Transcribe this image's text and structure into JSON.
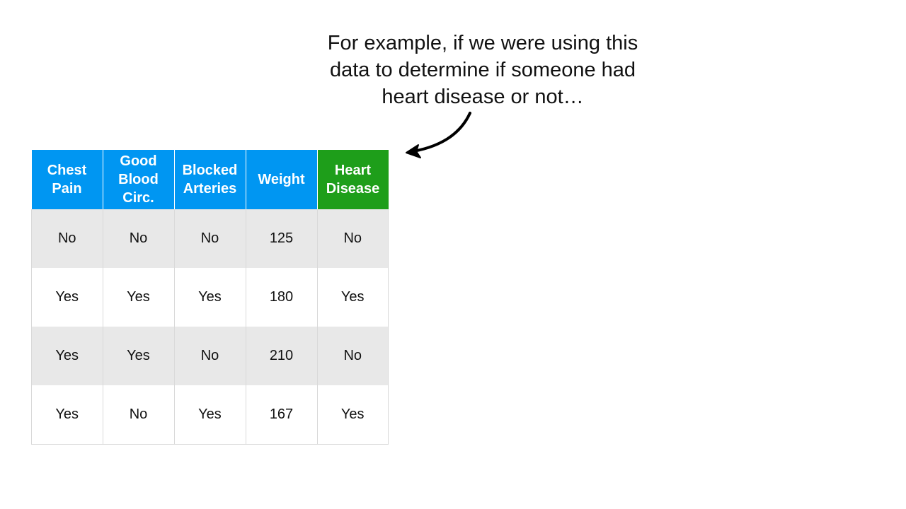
{
  "caption": {
    "line1": "For example, if we were using this",
    "line2": "data to determine if someone had",
    "line3": "heart disease or not…"
  },
  "table": {
    "headers": [
      {
        "lines": [
          "Chest",
          "Pain"
        ],
        "color": "#0096f2"
      },
      {
        "lines": [
          "Good",
          "Blood",
          "Circ."
        ],
        "color": "#0096f2"
      },
      {
        "lines": [
          "Blocked",
          "Arteries"
        ],
        "color": "#0096f2"
      },
      {
        "lines": [
          "Weight"
        ],
        "color": "#0096f2"
      },
      {
        "lines": [
          "Heart",
          "Disease"
        ],
        "color": "#1e9e1a"
      }
    ],
    "rows": [
      [
        "No",
        "No",
        "No",
        "125",
        "No"
      ],
      [
        "Yes",
        "Yes",
        "Yes",
        "180",
        "Yes"
      ],
      [
        "Yes",
        "Yes",
        "No",
        "210",
        "No"
      ],
      [
        "Yes",
        "No",
        "Yes",
        "167",
        "Yes"
      ]
    ]
  }
}
